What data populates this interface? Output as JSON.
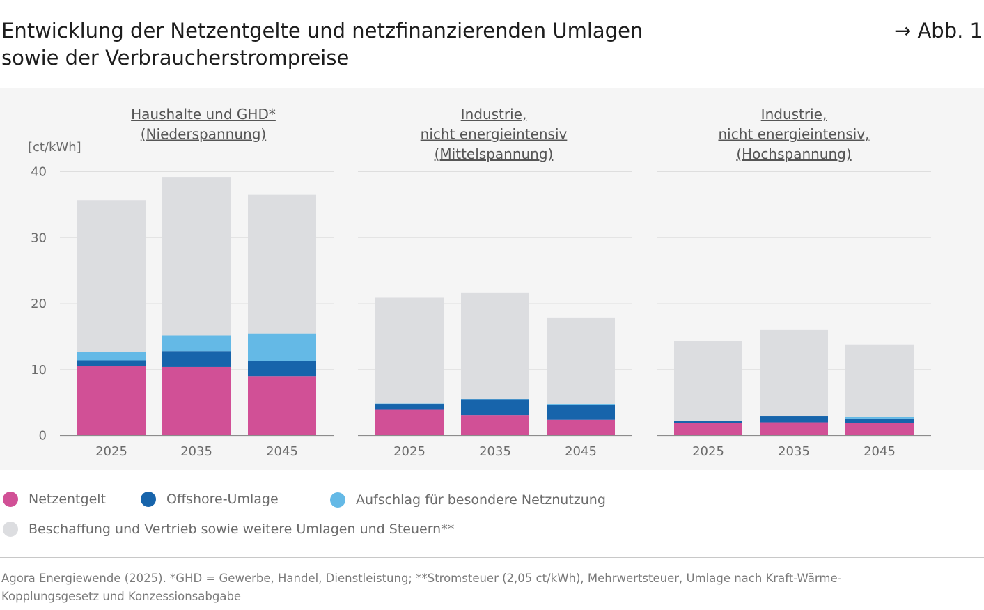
{
  "header": {
    "title_line1": "Entwicklung der Netzentgelte und netzfinanzierenden Umlagen",
    "title_line2": "sowie der Verbraucherstrompreise",
    "figure_ref": "→ Abb. 1"
  },
  "chart_data": {
    "type": "bar",
    "stacked": true,
    "unit_label": "[ct/kWh]",
    "ylim": [
      0,
      40
    ],
    "yticks": [
      0,
      10,
      20,
      30,
      40
    ],
    "categories": [
      "2025",
      "2035",
      "2045"
    ],
    "series_names": [
      "Netzentgelt",
      "Offshore-Umlage",
      "Aufschlag für besondere Netznutzung",
      "Beschaffung und Vertrieb sowie weitere Umlagen und Steuern**"
    ],
    "colors": [
      "#d15096",
      "#1764ab",
      "#64b9e6",
      "#dcdde0"
    ],
    "panels": [
      {
        "title_lines": [
          "Haushalte und GHD*",
          "(Niederspannung)"
        ],
        "series": [
          {
            "name": "Netzentgelt",
            "values": [
              10.5,
              10.4,
              9.0
            ]
          },
          {
            "name": "Offshore-Umlage",
            "values": [
              0.9,
              2.4,
              2.3
            ]
          },
          {
            "name": "Aufschlag für besondere Netznutzung",
            "values": [
              1.3,
              2.4,
              4.2
            ]
          },
          {
            "name": "Beschaffung und Vertrieb sowie weitere Umlagen und Steuern**",
            "values": [
              23.0,
              24.0,
              21.0
            ]
          }
        ]
      },
      {
        "title_lines": [
          "Industrie,",
          "nicht energieintensiv",
          "(Mittelspannung)"
        ],
        "series": [
          {
            "name": "Netzentgelt",
            "values": [
              3.9,
              3.1,
              2.4
            ]
          },
          {
            "name": "Offshore-Umlage",
            "values": [
              0.9,
              2.4,
              2.3
            ]
          },
          {
            "name": "Aufschlag für besondere Netznutzung",
            "values": [
              0.05,
              0.05,
              0.1
            ]
          },
          {
            "name": "Beschaffung und Vertrieb sowie weitere Umlagen und Steuern**",
            "values": [
              16.05,
              16.05,
              13.1
            ]
          }
        ]
      },
      {
        "title_lines": [
          "Industrie,",
          "nicht energieintensiv,",
          "(Hochspannung)"
        ],
        "series": [
          {
            "name": "Netzentgelt",
            "values": [
              1.9,
              2.0,
              1.9
            ]
          },
          {
            "name": "Offshore-Umlage",
            "values": [
              0.3,
              0.9,
              0.7
            ]
          },
          {
            "name": "Aufschlag für besondere Netznutzung",
            "values": [
              0.05,
              0.05,
              0.2
            ]
          },
          {
            "name": "Beschaffung und Vertrieb sowie weitere Umlagen und Steuern**",
            "values": [
              12.15,
              13.05,
              11.0
            ]
          }
        ]
      }
    ]
  },
  "legend": {
    "items": [
      {
        "label": "Netzentgelt",
        "color": "#d15096"
      },
      {
        "label": "Offshore-Umlage",
        "color": "#1764ab"
      },
      {
        "label": "Aufschlag für besondere Netznutzung",
        "color": "#64b9e6"
      },
      {
        "label": "Beschaffung und Vertrieb sowie weitere Umlagen und Steuern**",
        "color": "#dcdde0"
      }
    ]
  },
  "source": {
    "line1": "Agora Energiewende (2025). *GHD = Gewerbe, Handel, Dienstleistung; **Stromsteuer (2,05 ct/kWh), Mehrwertsteuer, Umlage nach Kraft-Wärme-",
    "line2": "Kopplungsgesetz und Konzessionsabgabe"
  }
}
